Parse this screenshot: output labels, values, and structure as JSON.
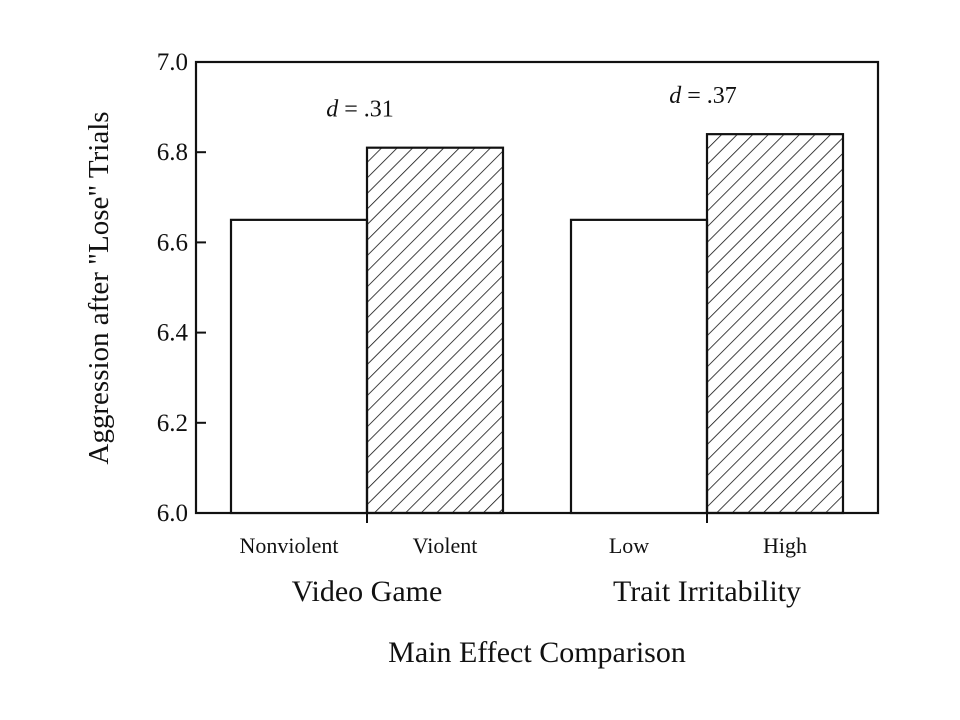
{
  "chart_data": {
    "type": "bar",
    "ylabel": "Aggression after \"Lose\" Trials",
    "xlabel": "Main Effect Comparison",
    "ylim": [
      6.0,
      7.0
    ],
    "yticks": [
      6.0,
      6.2,
      6.4,
      6.6,
      6.8,
      7.0
    ],
    "ytick_labels": [
      "6.0",
      "6.2",
      "6.4",
      "6.6",
      "6.8",
      "7.0"
    ],
    "grid": false,
    "groups": [
      {
        "name": "Video Game",
        "effect_size_label": ".31",
        "bars": [
          {
            "category": "Nonviolent",
            "value": 6.65,
            "pattern": "open"
          },
          {
            "category": "Violent",
            "value": 6.81,
            "pattern": "hatched"
          }
        ]
      },
      {
        "name": "Trait Irritability",
        "effect_size_label": ".37",
        "bars": [
          {
            "category": "Low",
            "value": 6.65,
            "pattern": "open"
          },
          {
            "category": "High",
            "value": 6.84,
            "pattern": "hatched"
          }
        ]
      }
    ],
    "effect_size_symbol": "d",
    "effect_size_prefix": " = "
  }
}
